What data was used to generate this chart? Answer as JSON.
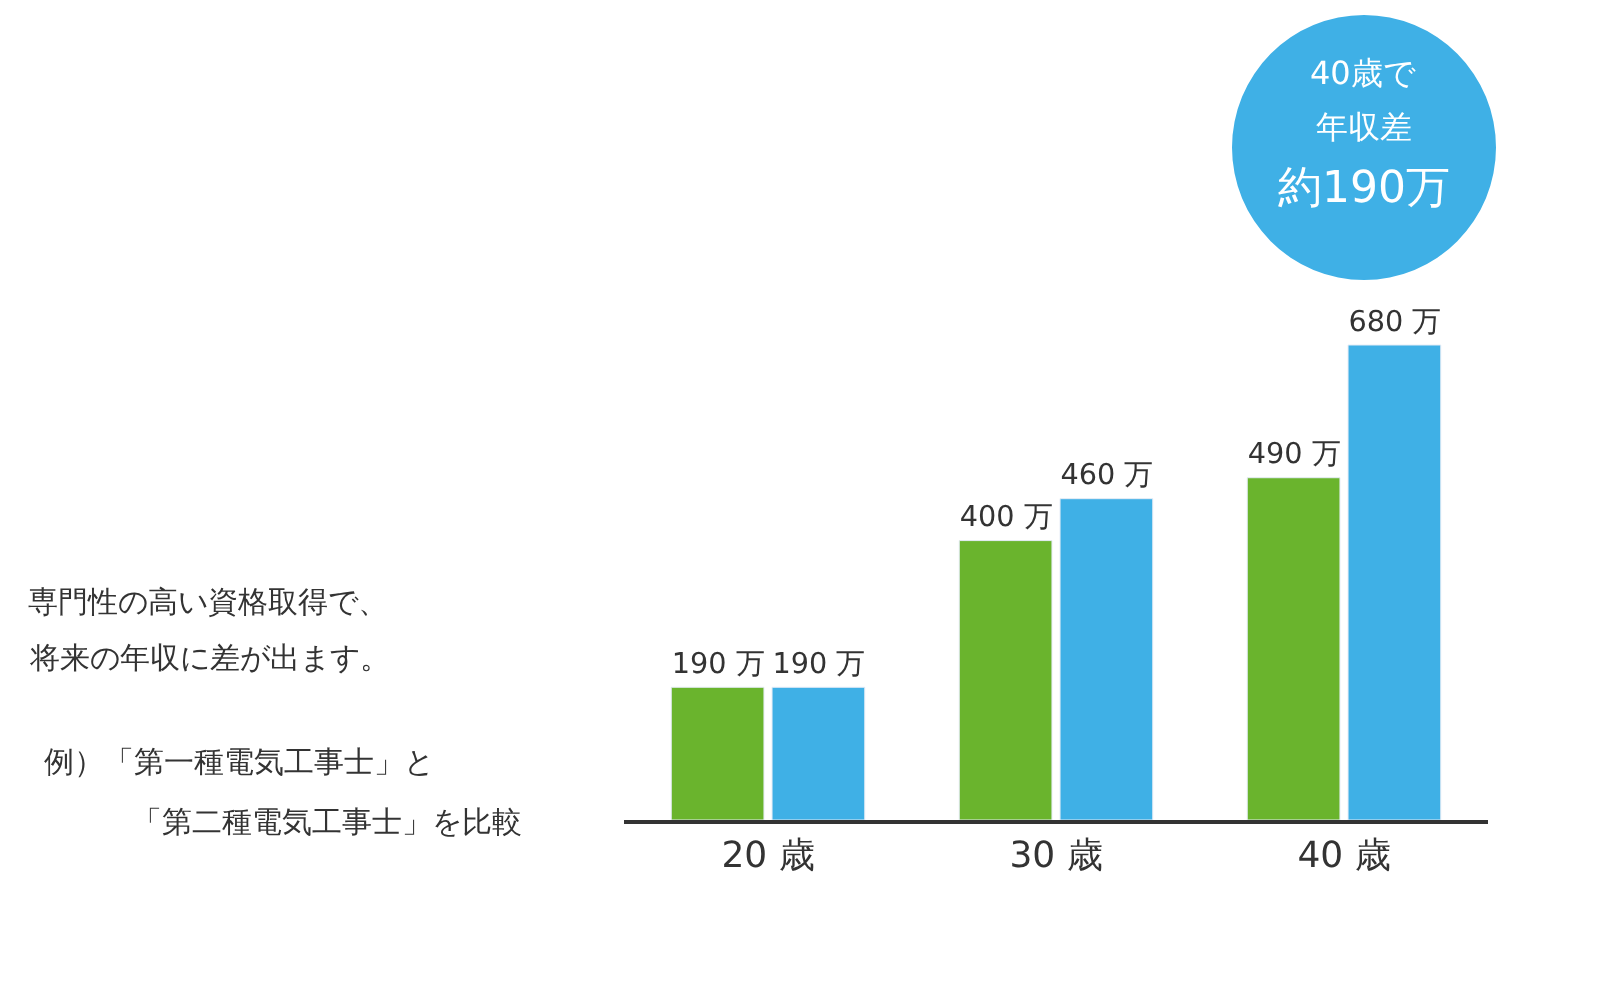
{
  "chart_data": {
    "type": "bar",
    "subtitle": "専門性の高い資格取得で、",
    "categories": [
      "20 歳",
      "30 歳",
      "40 歳"
    ],
    "series": [
      {
        "color": "#6ab42d",
        "values": [
          190,
          400,
          490
        ],
        "value_labels": [
          "190 万",
          "400 万",
          "490 万"
        ]
      },
      {
        "color": "#3fb0e6",
        "values": [
          190,
          460,
          680
        ],
        "value_labels": [
          "190 万",
          "460 万",
          "680 万"
        ]
      }
    ],
    "legend": false,
    "tick_labels": "x",
    "annotations": [
      "将来の年収に差が出ます。",
      "例）「第一種電気工事士」と",
      "「第二種電気工事士」を比較",
      "40歳で",
      "年収差",
      "約190万"
    ]
  }
}
